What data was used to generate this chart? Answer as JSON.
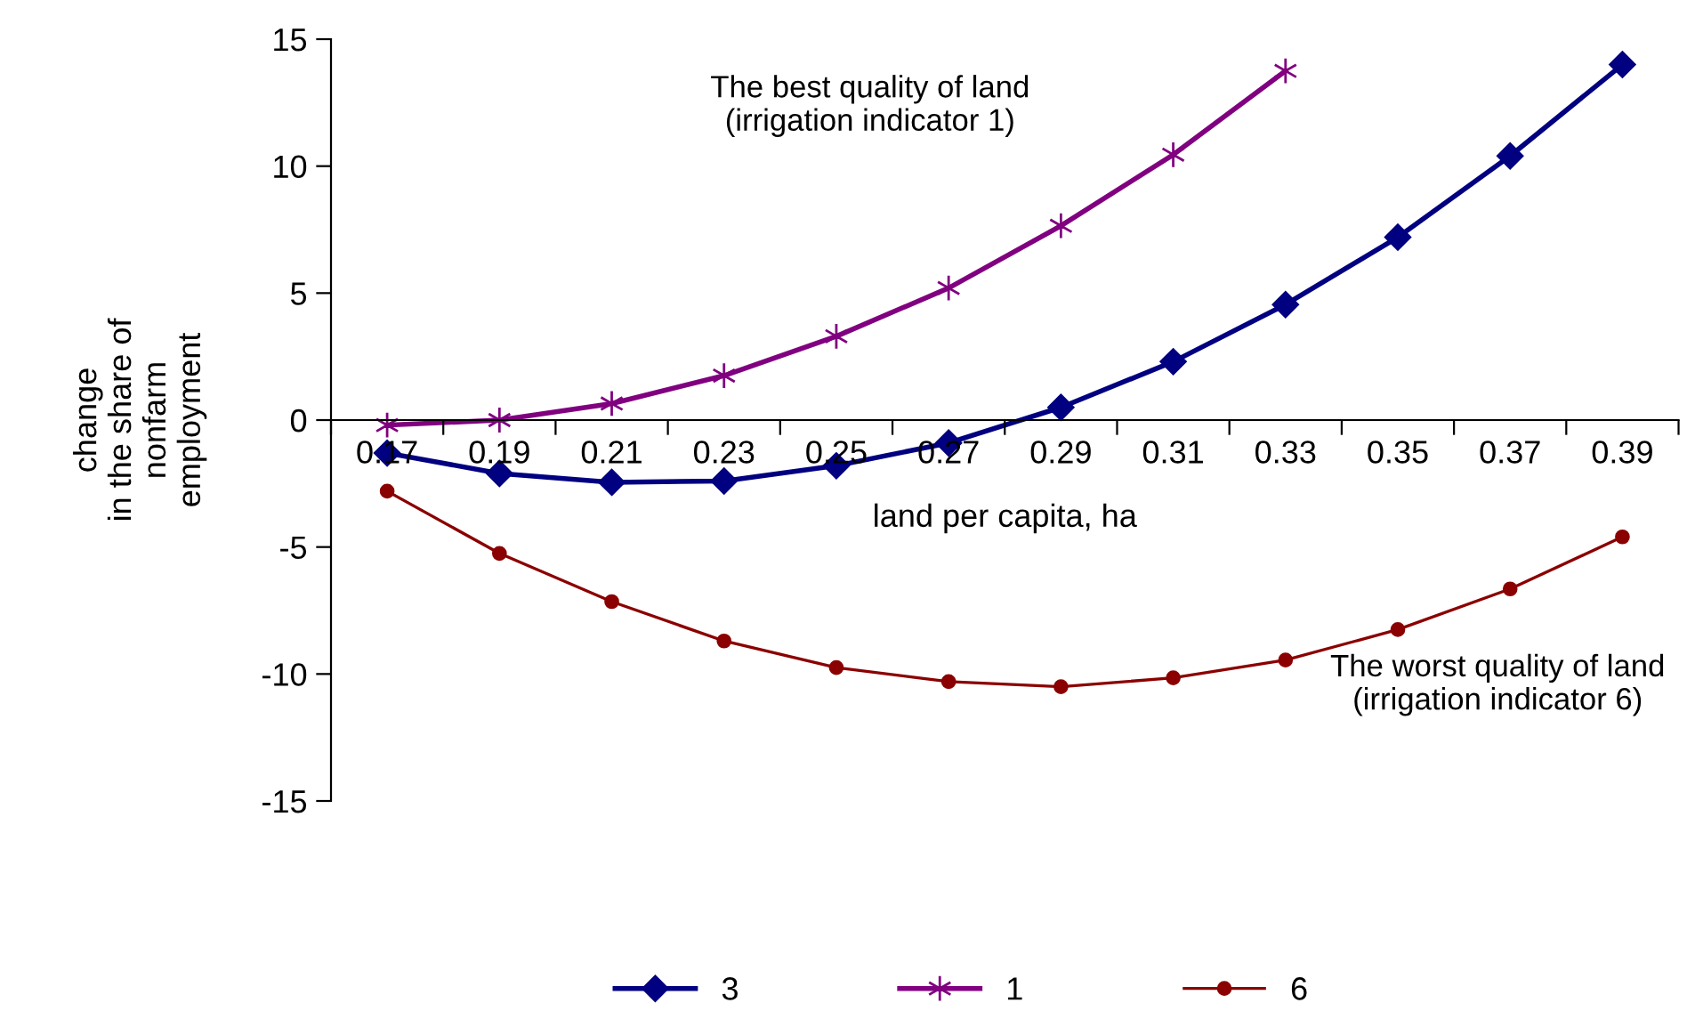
{
  "chart_data": {
    "type": "line",
    "xlabel": "land per capita, ha",
    "ylabel": "change\nin the share of\nnonfarm\nemployment",
    "categories": [
      "0.17",
      "0.19",
      "0.21",
      "0.23",
      "0.25",
      "0.27",
      "0.29",
      "0.31",
      "0.33",
      "0.35",
      "0.37",
      "0.39"
    ],
    "series": [
      {
        "name": "3",
        "color": "#000080",
        "marker": "diamond",
        "values": [
          -1.3,
          -2.1,
          -2.45,
          -2.4,
          -1.8,
          -0.9,
          0.5,
          2.3,
          4.55,
          7.2,
          10.4,
          14.0
        ]
      },
      {
        "name": "1",
        "color": "#800080",
        "marker": "cross",
        "values": [
          -0.2,
          0.0,
          0.65,
          1.75,
          3.3,
          5.2,
          7.65,
          10.45,
          13.75,
          null,
          null,
          null
        ]
      },
      {
        "name": "6",
        "color": "#8b0000",
        "marker": "circle",
        "values": [
          -2.8,
          -5.25,
          -7.15,
          -8.7,
          -9.75,
          -10.3,
          -10.5,
          -10.15,
          -9.45,
          -8.25,
          -6.65,
          -4.6
        ]
      }
    ],
    "ylim": [
      -15,
      15
    ],
    "yticks": [
      15,
      10,
      5,
      0,
      -5,
      -10,
      -15
    ],
    "grid": false,
    "legend": "bottom",
    "annotations": [
      "The best quality of land\n(irrigation indicator 1)",
      "The worst quality of land\n(irrigation indicator 6)"
    ]
  }
}
